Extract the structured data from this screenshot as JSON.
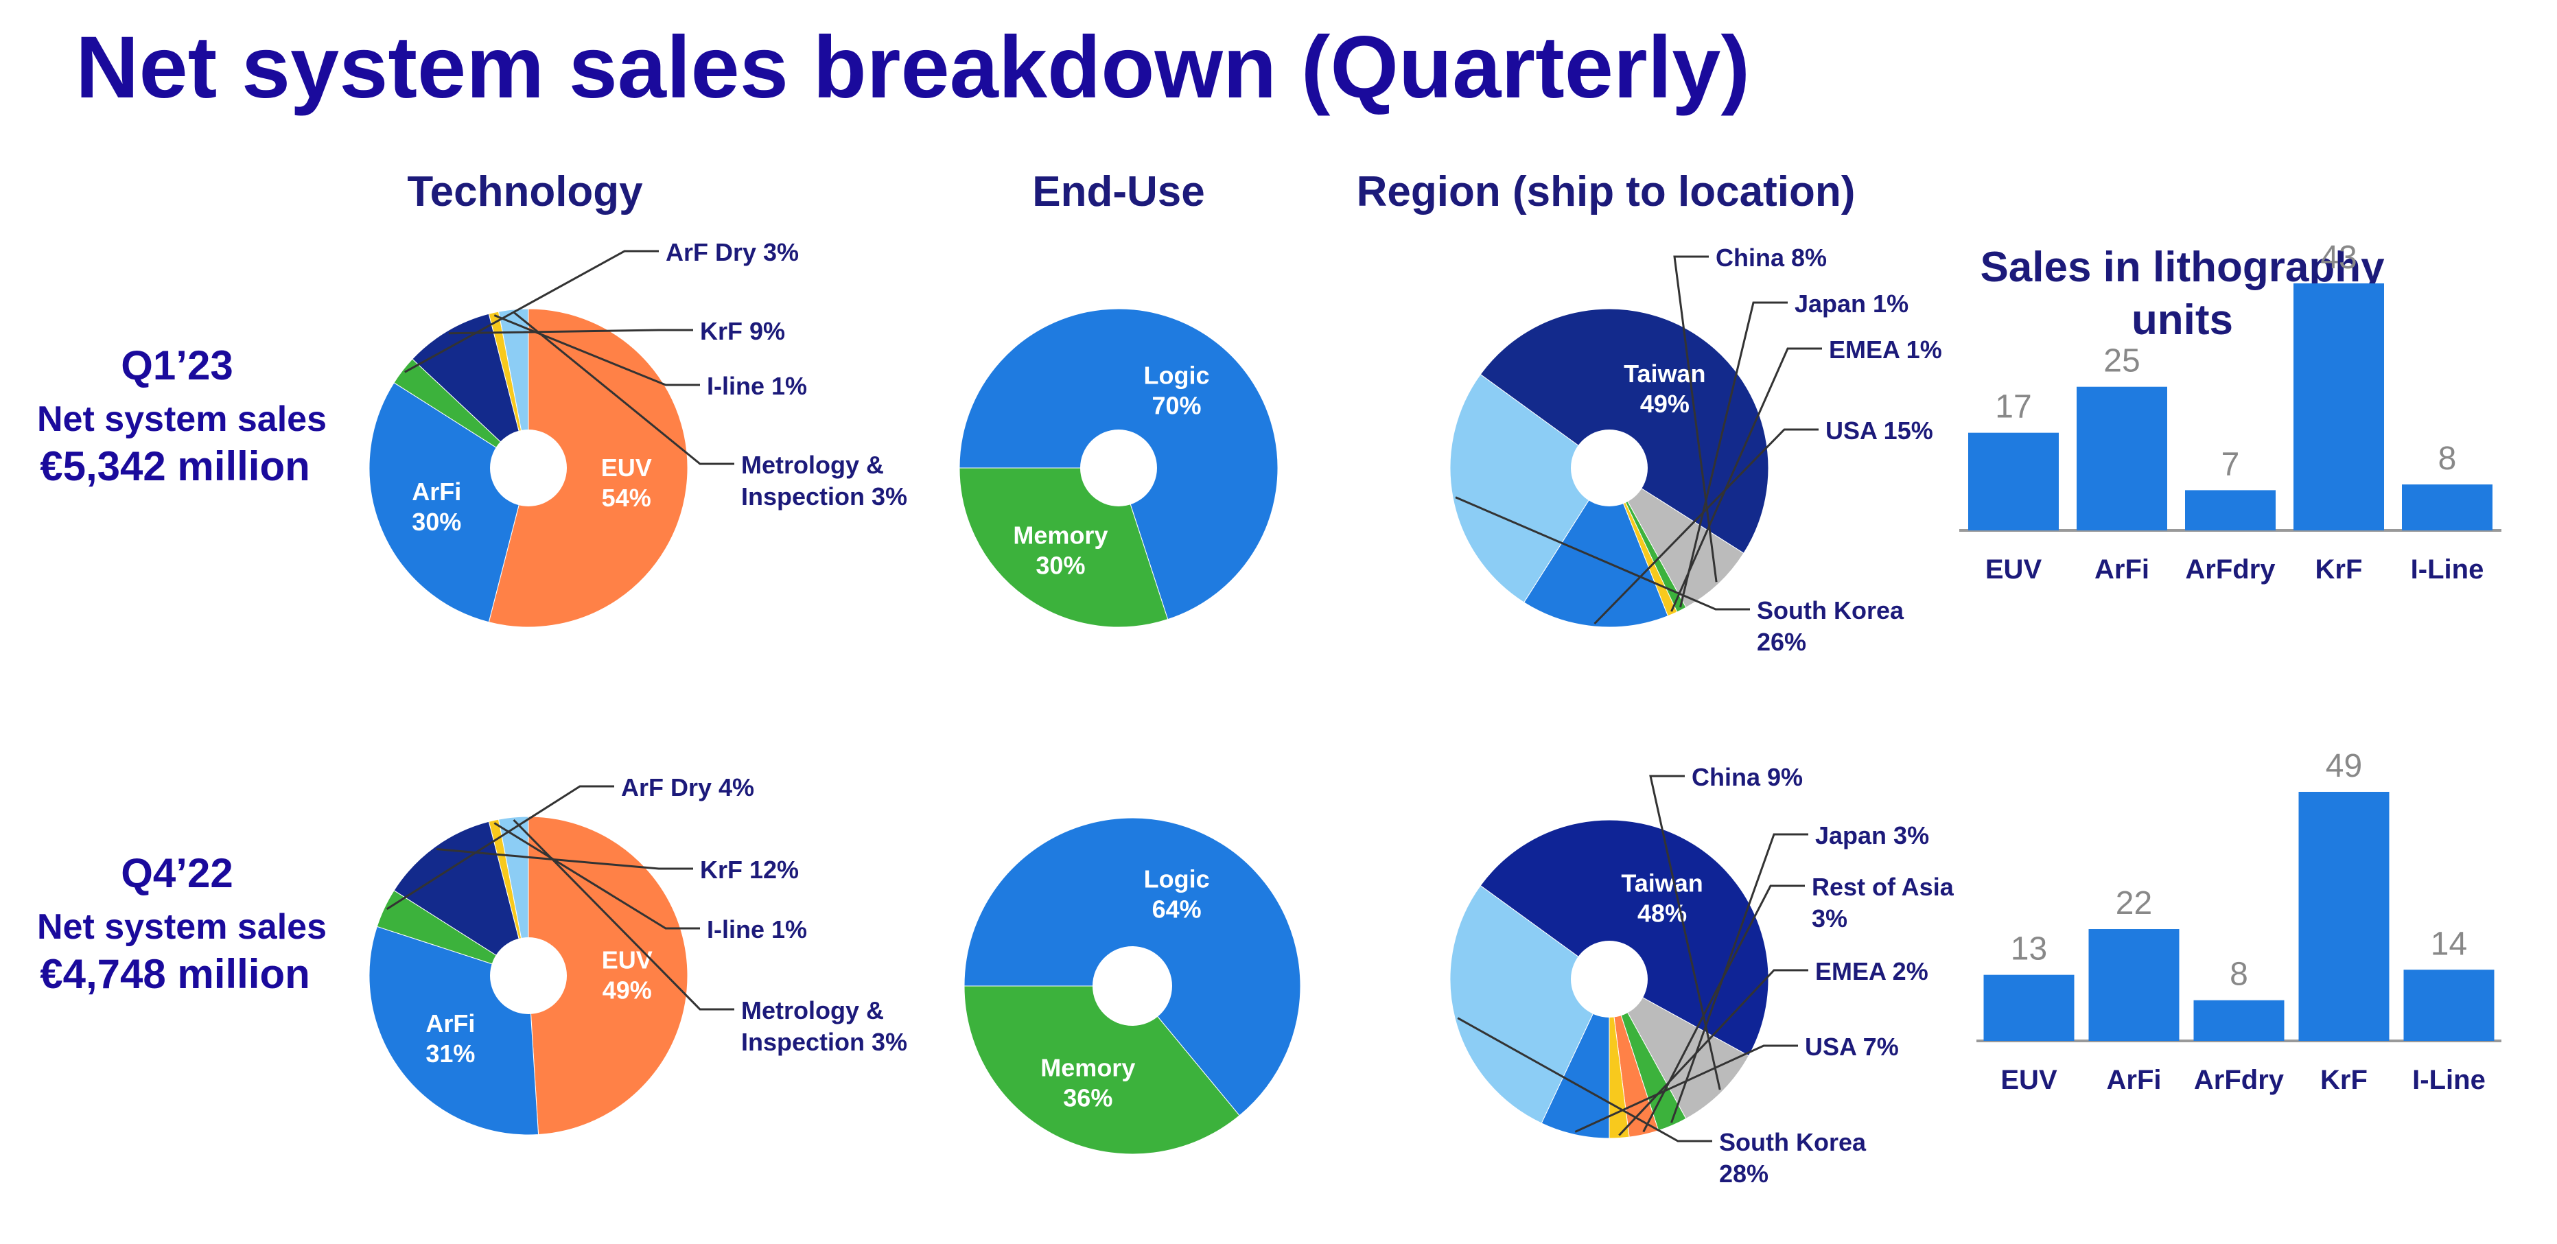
{
  "title": "Net system sales breakdown (Quarterly)",
  "headers": {
    "technology": "Technology",
    "end_use": "End-Use",
    "region": "Region (ship to location)",
    "litho_units_line1": "Sales in lithography",
    "litho_units_line2": "units"
  },
  "colors": {
    "title": "#1a0a9c",
    "label_dark": "#1c1a7a",
    "inner_label": "#ffffff",
    "bar": "#1f7be0",
    "bar_value": "#888888",
    "axis": "#999999",
    "leader": "#333333"
  },
  "quarters": [
    {
      "period": "Q1’23",
      "net_label": "Net system sales",
      "amount": "€5,342 million"
    },
    {
      "period": "Q4’22",
      "net_label": "Net system sales",
      "amount": "€4,748 million"
    }
  ],
  "chart_data": [
    {
      "type": "pie",
      "quarter": "Q1’23",
      "group": "Technology",
      "start_angle": 90,
      "slices": [
        {
          "label": "EUV",
          "pct": "54%",
          "value": 54,
          "color": "#ff8147",
          "inside": true
        },
        {
          "label": "ArFi",
          "pct": "30%",
          "value": 30,
          "color": "#1f7be0",
          "inside": true
        },
        {
          "label": "ArF Dry 3%",
          "value": 3,
          "color": "#3cb23c",
          "inside": false
        },
        {
          "label": "KrF 9%",
          "value": 9,
          "color": "#132a8c",
          "inside": false
        },
        {
          "label": "I-line 1%",
          "value": 1,
          "color": "#f8c91d",
          "inside": false
        },
        {
          "label": "Metrology &",
          "label2": "Inspection 3%",
          "value": 3,
          "color": "#8ccdf5",
          "inside": false
        }
      ]
    },
    {
      "type": "pie",
      "quarter": "Q1’23",
      "group": "End-Use",
      "start_angle": 180,
      "slices": [
        {
          "label": "Logic",
          "pct": "70%",
          "value": 70,
          "color": "#1f7be0",
          "inside": true
        },
        {
          "label": "Memory",
          "pct": "30%",
          "value": 30,
          "color": "#3cb23c",
          "inside": true
        }
      ]
    },
    {
      "type": "pie",
      "quarter": "Q1’23",
      "group": "Region",
      "start_angle": 144,
      "slices": [
        {
          "label": "Taiwan",
          "pct": "49%",
          "value": 49,
          "color": "#132a8c",
          "inside": true
        },
        {
          "label": "China 8%",
          "value": 8,
          "color": "#bbbbbb",
          "inside": false
        },
        {
          "label": "Japan 1%",
          "value": 1,
          "color": "#3cb23c",
          "inside": false
        },
        {
          "label": "EMEA 1%",
          "value": 1,
          "color": "#f8c91d",
          "inside": false
        },
        {
          "label": "USA 15%",
          "value": 15,
          "color": "#1f7be0",
          "inside": false
        },
        {
          "label": "South Korea",
          "label2": "26%",
          "value": 26,
          "color": "#8ccdf5",
          "inside": false
        }
      ]
    },
    {
      "type": "bar",
      "quarter": "Q1’23",
      "group": "Sales in lithography units",
      "categories": [
        "EUV",
        "ArFi",
        "ArFdry",
        "KrF",
        "I-Line"
      ],
      "values": [
        17,
        25,
        7,
        43,
        8
      ]
    },
    {
      "type": "pie",
      "quarter": "Q4’22",
      "group": "Technology",
      "start_angle": 90,
      "slices": [
        {
          "label": "EUV",
          "pct": "49%",
          "value": 49,
          "color": "#ff8147",
          "inside": true
        },
        {
          "label": "ArFi",
          "pct": "31%",
          "value": 31,
          "color": "#1f7be0",
          "inside": true
        },
        {
          "label": "ArF Dry 4%",
          "value": 4,
          "color": "#3cb23c",
          "inside": false
        },
        {
          "label": "KrF 12%",
          "value": 12,
          "color": "#132a8c",
          "inside": false
        },
        {
          "label": "I-line 1%",
          "value": 1,
          "color": "#f8c91d",
          "inside": false
        },
        {
          "label": "Metrology &",
          "label2": "Inspection 3%",
          "value": 3,
          "color": "#8ccdf5",
          "inside": false
        }
      ]
    },
    {
      "type": "pie",
      "quarter": "Q4’22",
      "group": "End-Use",
      "start_angle": 180,
      "slices": [
        {
          "label": "Logic",
          "pct": "64%",
          "value": 64,
          "color": "#1f7be0",
          "inside": true
        },
        {
          "label": "Memory",
          "pct": "36%",
          "value": 36,
          "color": "#3cb23c",
          "inside": true
        }
      ]
    },
    {
      "type": "pie",
      "quarter": "Q4’22",
      "group": "Region",
      "start_angle": 144,
      "slices": [
        {
          "label": "Taiwan",
          "pct": "48%",
          "value": 48,
          "color": "#0f2496",
          "inside": true
        },
        {
          "label": "China 9%",
          "value": 9,
          "color": "#bbbbbb",
          "inside": false
        },
        {
          "label": "Japan 3%",
          "value": 3,
          "color": "#3cb23c",
          "inside": false
        },
        {
          "label": "Rest of Asia",
          "label2": "3%",
          "value": 3,
          "color": "#ff8147",
          "inside": false
        },
        {
          "label": "EMEA 2%",
          "value": 2,
          "color": "#f8c91d",
          "inside": false
        },
        {
          "label": "USA 7%",
          "value": 7,
          "color": "#1f7be0",
          "inside": false
        },
        {
          "label": "South Korea",
          "label2": "28%",
          "value": 28,
          "color": "#8ccdf5",
          "inside": false
        }
      ]
    },
    {
      "type": "bar",
      "quarter": "Q4’22",
      "group": "Sales in lithography units",
      "categories": [
        "EUV",
        "ArFi",
        "ArFdry",
        "KrF",
        "I-Line"
      ],
      "values": [
        13,
        22,
        8,
        49,
        14
      ]
    }
  ]
}
